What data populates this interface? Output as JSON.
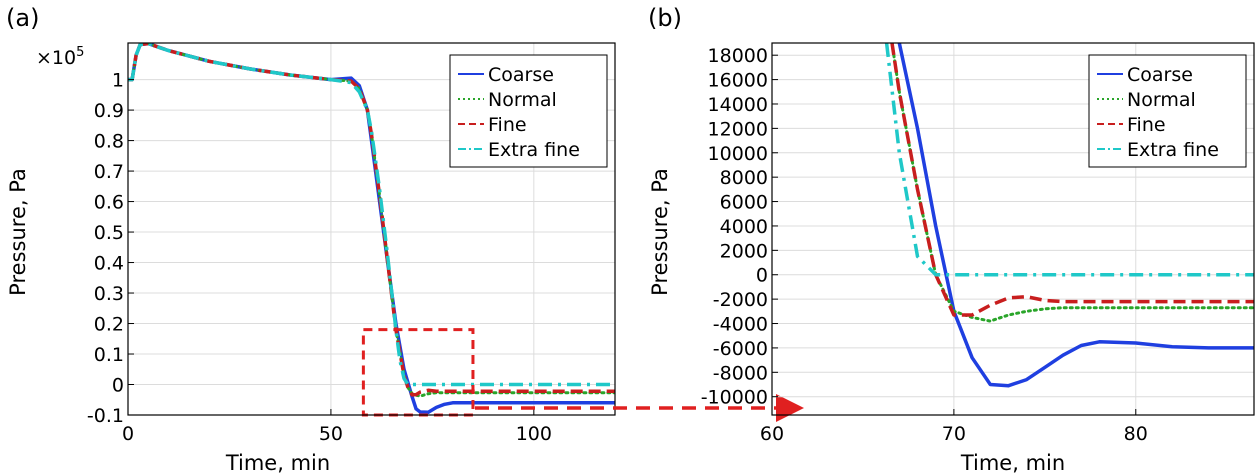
{
  "chart_data": [
    {
      "type": "line",
      "panel_label": "(a)",
      "xlabel": "Time, min",
      "ylabel": "Pressure, Pa",
      "y_multiplier_text": "×10",
      "y_multiplier_exp": "5",
      "xlim": [
        0,
        120
      ],
      "ylim": [
        -0.1,
        1.12
      ],
      "xticks": [
        0,
        50,
        100
      ],
      "yticks": [
        -0.1,
        0,
        0.1,
        0.2,
        0.3,
        0.4,
        0.5,
        0.6,
        0.7,
        0.8,
        0.9,
        1
      ],
      "ytick_labels": [
        "-0.1",
        "0",
        "0.1",
        "0.2",
        "0.3",
        "0.4",
        "0.5",
        "0.6",
        "0.7",
        "0.8",
        "0.9",
        "1"
      ],
      "grid": true,
      "legend_position": "top-right",
      "inset_box": {
        "x": [
          58,
          85
        ],
        "y": [
          -0.1,
          0.18
        ]
      },
      "series": [
        {
          "name": "Coarse",
          "color": "#1f3fe0",
          "dash": "solid",
          "x": [
            0,
            1,
            2,
            3,
            5,
            10,
            20,
            30,
            40,
            50,
            55,
            57,
            59,
            60,
            62,
            64,
            66,
            68,
            70,
            71,
            72,
            74,
            76,
            78,
            80,
            90,
            100,
            110,
            120
          ],
          "y": [
            1.0,
            1.0,
            1.08,
            1.115,
            1.118,
            1.095,
            1.06,
            1.035,
            1.015,
            1.0,
            1.005,
            0.98,
            0.9,
            0.8,
            0.6,
            0.4,
            0.2,
            0.05,
            -0.04,
            -0.08,
            -0.09,
            -0.091,
            -0.075,
            -0.065,
            -0.06,
            -0.06,
            -0.06,
            -0.06,
            -0.06
          ]
        },
        {
          "name": "Normal",
          "color": "#2aa52a",
          "dash": "dotted",
          "x": [
            0,
            1,
            2,
            3,
            5,
            10,
            20,
            30,
            40,
            50,
            55,
            57,
            59,
            60,
            62,
            64,
            66,
            68,
            69,
            70,
            71,
            72,
            74,
            76,
            78,
            80,
            90,
            100,
            110,
            120
          ],
          "y": [
            1.0,
            1.0,
            1.08,
            1.115,
            1.118,
            1.095,
            1.06,
            1.035,
            1.015,
            1.0,
            0.995,
            0.97,
            0.9,
            0.82,
            0.62,
            0.4,
            0.18,
            0.03,
            -0.01,
            -0.03,
            -0.035,
            -0.038,
            -0.03,
            -0.027,
            -0.027,
            -0.027,
            -0.027,
            -0.027,
            -0.027,
            -0.027
          ]
        },
        {
          "name": "Fine",
          "color": "#c81e1e",
          "dash": "dashed",
          "x": [
            0,
            1,
            2,
            3,
            5,
            10,
            20,
            30,
            40,
            50,
            55,
            57,
            59,
            60,
            62,
            64,
            66,
            68,
            69,
            70,
            71,
            72,
            74,
            76,
            78,
            80,
            90,
            100,
            110,
            120
          ],
          "y": [
            1.0,
            1.0,
            1.08,
            1.115,
            1.118,
            1.095,
            1.06,
            1.035,
            1.015,
            1.0,
            0.995,
            0.97,
            0.9,
            0.82,
            0.62,
            0.4,
            0.18,
            0.03,
            -0.01,
            -0.034,
            -0.033,
            -0.025,
            -0.019,
            -0.022,
            -0.022,
            -0.022,
            -0.022,
            -0.022,
            -0.022,
            -0.022
          ]
        },
        {
          "name": "Extra fine",
          "color": "#1fc8c8",
          "dash": "dashdot",
          "x": [
            0,
            1,
            2,
            3,
            5,
            10,
            20,
            30,
            40,
            50,
            55,
            57,
            59,
            60,
            62,
            64,
            66,
            67,
            68,
            69,
            70,
            80,
            90,
            100,
            110,
            120
          ],
          "y": [
            1.0,
            1.0,
            1.08,
            1.115,
            1.118,
            1.095,
            1.06,
            1.035,
            1.015,
            1.0,
            0.99,
            0.96,
            0.9,
            0.83,
            0.64,
            0.42,
            0.18,
            0.08,
            0.02,
            0.0,
            0.0,
            0.0,
            0.0,
            0.0,
            0.0,
            0.0
          ]
        }
      ]
    },
    {
      "type": "line",
      "panel_label": "(b)",
      "xlabel": "Time, min",
      "ylabel": "Pressure, Pa",
      "xlim": [
        60,
        86.5
      ],
      "ylim": [
        -11500,
        19000
      ],
      "xticks": [
        60,
        70,
        80
      ],
      "yticks": [
        -10000,
        -8000,
        -6000,
        -4000,
        -2000,
        0,
        2000,
        4000,
        6000,
        8000,
        10000,
        12000,
        14000,
        16000,
        18000
      ],
      "ytick_labels": [
        "-10000",
        "-8000",
        "-6000",
        "-4000",
        "-2000",
        "0",
        "2000",
        "4000",
        "6000",
        "8000",
        "10000",
        "12000",
        "14000",
        "16000",
        "18000"
      ],
      "grid": true,
      "legend_position": "top-right",
      "series": [
        {
          "name": "Coarse",
          "color": "#1f3fe0",
          "dash": "solid",
          "x": [
            67.0,
            68,
            69,
            70,
            71,
            72,
            73,
            74,
            75,
            76,
            77,
            78,
            80,
            82,
            84,
            86.5
          ],
          "y": [
            19000,
            12000,
            4000,
            -3000,
            -6800,
            -9000,
            -9100,
            -8600,
            -7600,
            -6600,
            -5800,
            -5500,
            -5600,
            -5900,
            -6000,
            -6000
          ]
        },
        {
          "name": "Normal",
          "color": "#2aa52a",
          "dash": "dotted",
          "x": [
            66.6,
            67,
            68,
            69,
            70,
            71,
            72,
            73,
            74,
            75,
            76,
            78,
            80,
            84,
            86.5
          ],
          "y": [
            19000,
            15000,
            7000,
            0,
            -3000,
            -3500,
            -3800,
            -3300,
            -3000,
            -2800,
            -2700,
            -2700,
            -2700,
            -2700,
            -2700
          ]
        },
        {
          "name": "Fine",
          "color": "#c81e1e",
          "dash": "dashed",
          "x": [
            66.6,
            67,
            68,
            69,
            70,
            71,
            72,
            73,
            74,
            75,
            76,
            78,
            80,
            84,
            86.5
          ],
          "y": [
            19000,
            15000,
            7000,
            0,
            -3300,
            -3300,
            -2500,
            -1900,
            -1800,
            -2100,
            -2200,
            -2200,
            -2200,
            -2200,
            -2200
          ]
        },
        {
          "name": "Extra fine",
          "color": "#1fc8c8",
          "dash": "dashdot",
          "x": [
            66.3,
            67,
            68,
            69,
            70,
            72,
            75,
            80,
            86.5
          ],
          "y": [
            19000,
            10000,
            1500,
            0,
            0,
            0,
            0,
            0,
            0
          ]
        }
      ]
    }
  ]
}
